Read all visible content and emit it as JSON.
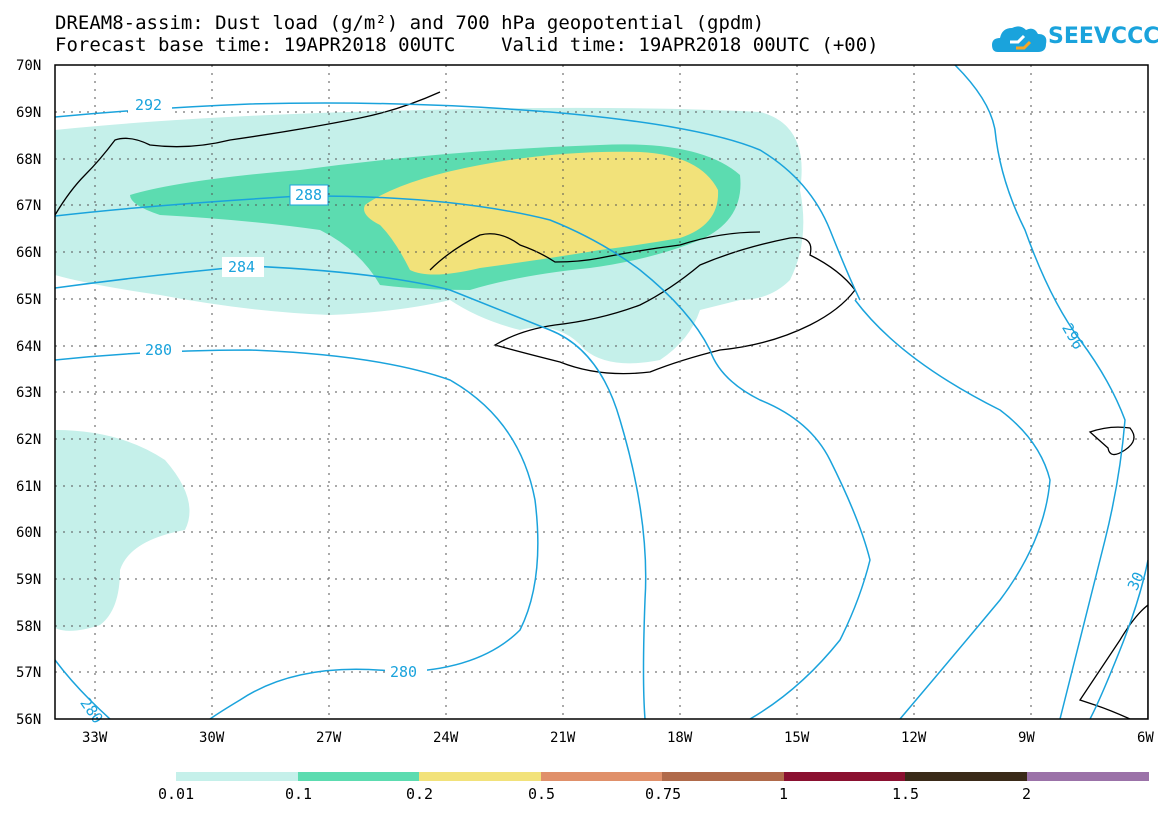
{
  "header": {
    "title_line1": "DREAM8-assim: Dust load (g/m²) and 700 hPa geopotential (gpdm)",
    "title_line2": "Forecast base time: 19APR2018 00UTC    Valid time: 19APR2018 00UTC (+00)",
    "logo_text": "SEEVCCC"
  },
  "map": {
    "lat_labels": [
      "70N",
      "69N",
      "68N",
      "67N",
      "66N",
      "65N",
      "64N",
      "63N",
      "62N",
      "61N",
      "60N",
      "59N",
      "58N",
      "57N",
      "56N"
    ],
    "lon_labels": [
      "33W",
      "30W",
      "27W",
      "24W",
      "21W",
      "18W",
      "15W",
      "12W",
      "9W",
      "6W"
    ],
    "contour_labels": [
      "292",
      "288",
      "284",
      "280",
      "280",
      "280",
      "296",
      "30"
    ],
    "colors": {
      "contour": "#1aa3dc",
      "coast": "#000000",
      "dust_0_01": "#c5f0ea",
      "dust_0_1": "#5cdcb0",
      "dust_0_2": "#f2e27a"
    }
  },
  "colorbar": {
    "labels": [
      "0.01",
      "0.1",
      "0.2",
      "0.5",
      "0.75",
      "1",
      "1.5",
      "2"
    ],
    "colors": [
      "#c5f0ea",
      "#5cdcb0",
      "#f2e27a",
      "#e0906a",
      "#b06a4a",
      "#8a1030",
      "#3a2a18",
      "#9b72a8"
    ]
  }
}
